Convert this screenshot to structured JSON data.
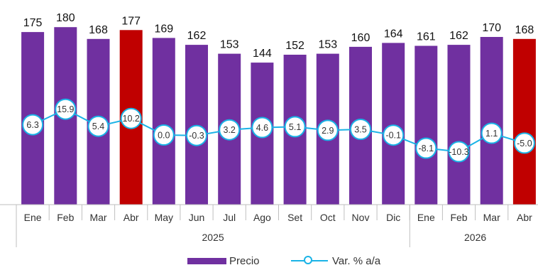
{
  "chart_data": {
    "type": "bar",
    "categories": [
      "Ene",
      "Feb",
      "Mar",
      "Abr",
      "May",
      "Jun",
      "Jul",
      "Ago",
      "Set",
      "Oct",
      "Nov",
      "Dic",
      "Ene",
      "Feb",
      "Mar",
      "Abr"
    ],
    "groups": [
      {
        "label": "2025",
        "count": 12
      },
      {
        "label": "2026",
        "count": 4
      }
    ],
    "series": [
      {
        "name": "Precio",
        "type": "bar",
        "values": [
          175,
          180,
          168,
          177,
          169,
          162,
          153,
          144,
          152,
          153,
          160,
          164,
          161,
          162,
          170,
          168
        ],
        "highlight_indices": [
          3,
          15
        ]
      },
      {
        "name": "Var. % a/a",
        "type": "line",
        "values": [
          6.3,
          15.9,
          5.4,
          10.2,
          0.0,
          -0.3,
          3.2,
          4.6,
          5.1,
          2.9,
          3.5,
          -0.1,
          -8.1,
          -10.3,
          1.1,
          -5.0
        ]
      }
    ],
    "colors": {
      "bar": "#7030a0",
      "bar_highlight": "#c00000",
      "line": "#1ab3e6",
      "axis": "#bfbfbf"
    },
    "legend_position": "bottom",
    "grid": false
  }
}
